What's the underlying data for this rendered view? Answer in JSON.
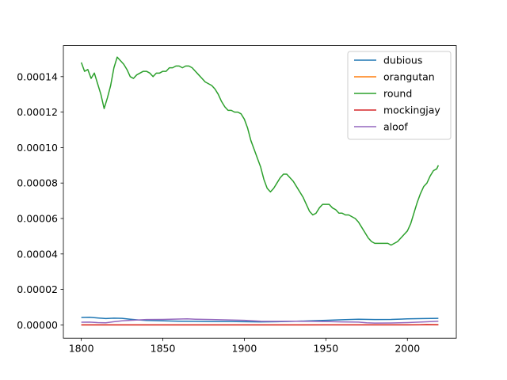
{
  "chart_data": {
    "type": "line",
    "title": "",
    "xlabel": "",
    "ylabel": "",
    "xlim": [
      1789,
      2030
    ],
    "ylim": [
      -7.5e-06,
      0.0001575
    ],
    "grid": false,
    "legend_position": "top-right",
    "x_ticks": [
      1800,
      1850,
      1900,
      1950,
      2000
    ],
    "y_ticks": [
      0.0,
      2e-05,
      4e-05,
      6e-05,
      8e-05,
      0.0001,
      0.00012,
      0.00014
    ],
    "x_tick_labels": [
      "1800",
      "1850",
      "1900",
      "1950",
      "2000"
    ],
    "y_tick_labels": [
      "0.00000",
      "0.00002",
      "0.00004",
      "0.00006",
      "0.00008",
      "0.00010",
      "0.00012",
      "0.00014"
    ],
    "series": [
      {
        "name": "dubious",
        "color": "#1f77b4",
        "points": [
          [
            1800,
            4.2e-06
          ],
          [
            1805,
            4.3e-06
          ],
          [
            1810,
            3.9e-06
          ],
          [
            1815,
            3.6e-06
          ],
          [
            1820,
            3.8e-06
          ],
          [
            1825,
            3.7e-06
          ],
          [
            1830,
            3.2e-06
          ],
          [
            1835,
            2.8e-06
          ],
          [
            1840,
            2.5e-06
          ],
          [
            1850,
            2.3e-06
          ],
          [
            1860,
            2.1e-06
          ],
          [
            1870,
            2e-06
          ],
          [
            1880,
            1.9e-06
          ],
          [
            1890,
            1.9e-06
          ],
          [
            1900,
            1.8e-06
          ],
          [
            1910,
            1.7e-06
          ],
          [
            1920,
            1.8e-06
          ],
          [
            1930,
            2e-06
          ],
          [
            1940,
            2.3e-06
          ],
          [
            1950,
            2.6e-06
          ],
          [
            1960,
            2.9e-06
          ],
          [
            1970,
            3.2e-06
          ],
          [
            1980,
            3e-06
          ],
          [
            1990,
            3.1e-06
          ],
          [
            2000,
            3.4e-06
          ],
          [
            2010,
            3.6e-06
          ],
          [
            2019,
            3.7e-06
          ]
        ]
      },
      {
        "name": "orangutan",
        "color": "#ff7f0e",
        "points": [
          [
            1800,
            1e-08
          ],
          [
            1850,
            1.5e-08
          ],
          [
            1900,
            2e-08
          ],
          [
            1950,
            4e-08
          ],
          [
            1980,
            6e-08
          ],
          [
            2000,
            8e-08
          ],
          [
            2019,
            1e-07
          ]
        ]
      },
      {
        "name": "round",
        "color": "#2ca02c",
        "points": [
          [
            1800,
            0.000148
          ],
          [
            1802,
            0.000143
          ],
          [
            1804,
            0.000144
          ],
          [
            1806,
            0.000139
          ],
          [
            1808,
            0.000142
          ],
          [
            1810,
            0.000136
          ],
          [
            1812,
            0.00013
          ],
          [
            1814,
            0.000122
          ],
          [
            1816,
            0.000128
          ],
          [
            1818,
            0.000135
          ],
          [
            1820,
            0.000145
          ],
          [
            1822,
            0.000151
          ],
          [
            1824,
            0.000149
          ],
          [
            1826,
            0.000147
          ],
          [
            1828,
            0.000144
          ],
          [
            1830,
            0.00014
          ],
          [
            1832,
            0.000139
          ],
          [
            1834,
            0.000141
          ],
          [
            1836,
            0.000142
          ],
          [
            1838,
            0.000143
          ],
          [
            1840,
            0.000143
          ],
          [
            1842,
            0.000142
          ],
          [
            1844,
            0.00014
          ],
          [
            1846,
            0.000142
          ],
          [
            1848,
            0.000142
          ],
          [
            1850,
            0.000143
          ],
          [
            1852,
            0.000143
          ],
          [
            1854,
            0.000145
          ],
          [
            1856,
            0.000145
          ],
          [
            1858,
            0.000146
          ],
          [
            1860,
            0.000146
          ],
          [
            1862,
            0.000145
          ],
          [
            1864,
            0.000146
          ],
          [
            1866,
            0.000146
          ],
          [
            1868,
            0.000145
          ],
          [
            1870,
            0.000143
          ],
          [
            1872,
            0.000141
          ],
          [
            1874,
            0.000139
          ],
          [
            1876,
            0.000137
          ],
          [
            1878,
            0.000136
          ],
          [
            1880,
            0.000135
          ],
          [
            1882,
            0.000133
          ],
          [
            1884,
            0.00013
          ],
          [
            1886,
            0.000126
          ],
          [
            1888,
            0.000123
          ],
          [
            1890,
            0.000121
          ],
          [
            1892,
            0.000121
          ],
          [
            1894,
            0.00012
          ],
          [
            1896,
            0.00012
          ],
          [
            1898,
            0.000119
          ],
          [
            1900,
            0.000116
          ],
          [
            1902,
            0.000111
          ],
          [
            1904,
            0.000104
          ],
          [
            1906,
            9.9e-05
          ],
          [
            1908,
            9.4e-05
          ],
          [
            1910,
            8.9e-05
          ],
          [
            1912,
            8.2e-05
          ],
          [
            1914,
            7.7e-05
          ],
          [
            1916,
            7.5e-05
          ],
          [
            1918,
            7.7e-05
          ],
          [
            1920,
            8e-05
          ],
          [
            1922,
            8.3e-05
          ],
          [
            1924,
            8.5e-05
          ],
          [
            1926,
            8.5e-05
          ],
          [
            1928,
            8.3e-05
          ],
          [
            1930,
            8.1e-05
          ],
          [
            1932,
            7.8e-05
          ],
          [
            1934,
            7.5e-05
          ],
          [
            1936,
            7.2e-05
          ],
          [
            1938,
            6.8e-05
          ],
          [
            1940,
            6.4e-05
          ],
          [
            1942,
            6.2e-05
          ],
          [
            1944,
            6.3e-05
          ],
          [
            1946,
            6.6e-05
          ],
          [
            1948,
            6.8e-05
          ],
          [
            1950,
            6.8e-05
          ],
          [
            1952,
            6.8e-05
          ],
          [
            1954,
            6.6e-05
          ],
          [
            1956,
            6.5e-05
          ],
          [
            1958,
            6.3e-05
          ],
          [
            1960,
            6.3e-05
          ],
          [
            1962,
            6.2e-05
          ],
          [
            1964,
            6.2e-05
          ],
          [
            1966,
            6.1e-05
          ],
          [
            1968,
            6e-05
          ],
          [
            1970,
            5.8e-05
          ],
          [
            1972,
            5.5e-05
          ],
          [
            1974,
            5.2e-05
          ],
          [
            1976,
            4.9e-05
          ],
          [
            1978,
            4.7e-05
          ],
          [
            1980,
            4.6e-05
          ],
          [
            1982,
            4.6e-05
          ],
          [
            1984,
            4.6e-05
          ],
          [
            1986,
            4.6e-05
          ],
          [
            1988,
            4.6e-05
          ],
          [
            1990,
            4.5e-05
          ],
          [
            1992,
            4.6e-05
          ],
          [
            1994,
            4.7e-05
          ],
          [
            1996,
            4.9e-05
          ],
          [
            1998,
            5.1e-05
          ],
          [
            2000,
            5.3e-05
          ],
          [
            2002,
            5.7e-05
          ],
          [
            2004,
            6.3e-05
          ],
          [
            2006,
            6.9e-05
          ],
          [
            2008,
            7.4e-05
          ],
          [
            2010,
            7.8e-05
          ],
          [
            2012,
            8e-05
          ],
          [
            2014,
            8.4e-05
          ],
          [
            2016,
            8.7e-05
          ],
          [
            2018,
            8.8e-05
          ],
          [
            2019,
            9e-05
          ]
        ]
      },
      {
        "name": "mockingjay",
        "color": "#d62728",
        "points": [
          [
            1800,
            1e-08
          ],
          [
            1850,
            1e-08
          ],
          [
            1900,
            1e-08
          ],
          [
            1950,
            1e-08
          ],
          [
            2000,
            2e-08
          ],
          [
            2008,
            5e-08
          ],
          [
            2012,
            1.5e-07
          ],
          [
            2015,
            1.2e-07
          ],
          [
            2019,
            8e-08
          ]
        ]
      },
      {
        "name": "aloof",
        "color": "#9467bd",
        "points": [
          [
            1800,
            1.5e-06
          ],
          [
            1805,
            1.6e-06
          ],
          [
            1810,
            1.3e-06
          ],
          [
            1815,
            1.2e-06
          ],
          [
            1820,
            1.8e-06
          ],
          [
            1825,
            2.3e-06
          ],
          [
            1830,
            2.6e-06
          ],
          [
            1835,
            2.8e-06
          ],
          [
            1840,
            3e-06
          ],
          [
            1850,
            3.1e-06
          ],
          [
            1860,
            3.3e-06
          ],
          [
            1865,
            3.4e-06
          ],
          [
            1870,
            3.2e-06
          ],
          [
            1880,
            3e-06
          ],
          [
            1890,
            2.8e-06
          ],
          [
            1900,
            2.6e-06
          ],
          [
            1910,
            2.1e-06
          ],
          [
            1920,
            2e-06
          ],
          [
            1930,
            2.1e-06
          ],
          [
            1940,
            2e-06
          ],
          [
            1950,
            1.9e-06
          ],
          [
            1960,
            1.7e-06
          ],
          [
            1970,
            1.6e-06
          ],
          [
            1975,
            1.2e-06
          ],
          [
            1980,
            1e-06
          ],
          [
            1990,
            1.1e-06
          ],
          [
            2000,
            1.3e-06
          ],
          [
            2010,
            1.7e-06
          ],
          [
            2019,
            2.1e-06
          ]
        ]
      }
    ]
  }
}
